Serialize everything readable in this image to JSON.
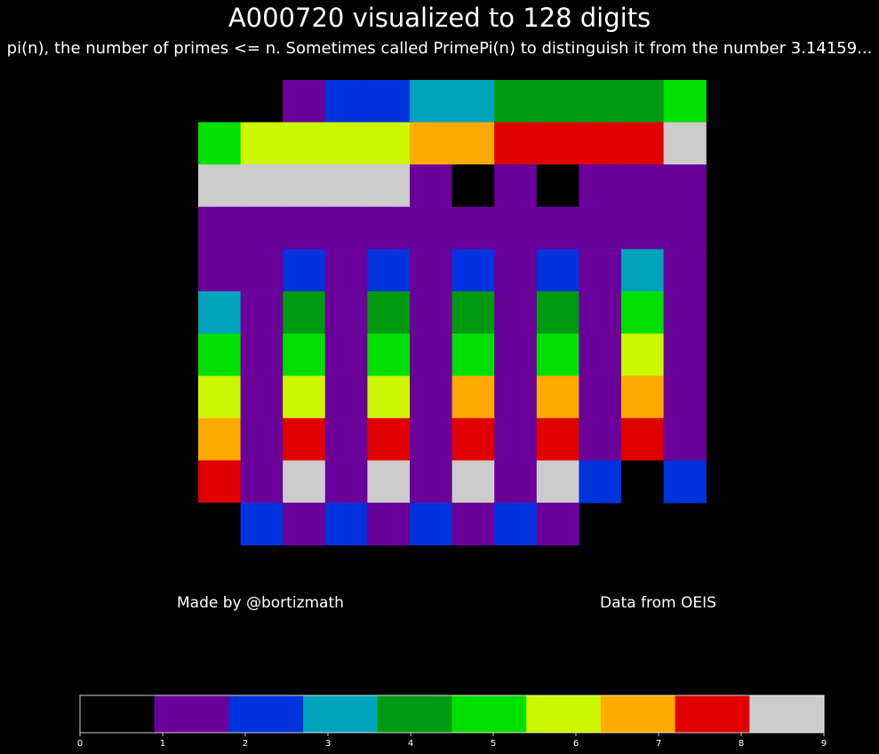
{
  "title": "A000720 visualized to 128 digits",
  "subtitle": "pi(n), the number of primes <= n. Sometimes called PrimePi(n) to distinguish it from the number 3.14159...",
  "credit_left": "Made by @bortizmath",
  "credit_right": "Data from OEIS",
  "colors": [
    "#000000",
    "#6a0099",
    "#0033dd",
    "#00a3bb",
    "#009a10",
    "#00e000",
    "#ccf700",
    "#ffaa00",
    "#e00000",
    "#cccccc"
  ],
  "chart_data": {
    "type": "heatmap",
    "title": "A000720 visualized to 128 digits",
    "subtitle": "pi(n), the number of primes <= n. Sometimes called PrimePi(n) to distinguish it from the number 3.14159...",
    "columns": 12,
    "rows": 11,
    "digits": [
      0,
      1,
      2,
      2,
      3,
      3,
      4,
      4,
      4,
      4,
      5,
      5,
      6,
      6,
      6,
      6,
      7,
      7,
      8,
      8,
      8,
      8,
      9,
      9,
      9,
      9,
      9,
      9,
      1,
      0,
      1,
      0,
      1,
      1,
      1,
      1,
      1,
      1,
      1,
      1,
      1,
      1,
      1,
      1,
      1,
      1,
      1,
      1,
      1,
      2,
      1,
      2,
      1,
      2,
      1,
      2,
      1,
      3,
      1,
      3,
      1,
      4,
      1,
      4,
      1,
      4,
      1,
      4,
      1,
      5,
      1,
      5,
      1,
      5,
      1,
      5,
      1,
      5,
      1,
      5,
      1,
      6,
      1,
      6,
      1,
      6,
      1,
      6,
      1,
      7,
      1,
      7,
      1,
      7,
      1,
      7,
      1,
      8,
      1,
      8,
      1,
      8,
      1,
      8,
      1,
      8,
      1,
      8,
      1,
      9,
      1,
      9,
      1,
      9,
      1,
      9,
      2,
      0,
      2,
      0,
      2,
      1,
      2,
      1,
      2,
      1,
      2,
      1
    ],
    "colorbar": {
      "range": [
        0,
        9
      ],
      "ticks": [
        0,
        1,
        2,
        3,
        4,
        5,
        6,
        7,
        8,
        9
      ]
    }
  }
}
